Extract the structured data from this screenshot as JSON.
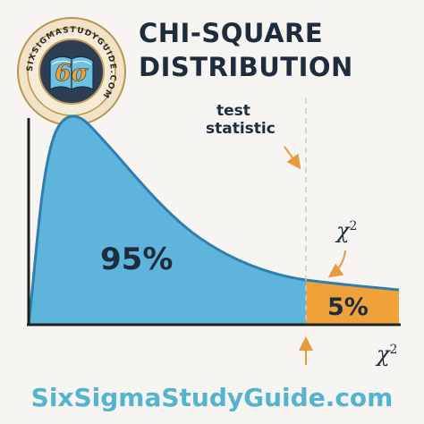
{
  "title": {
    "line1": "CHI-SQUARE",
    "line2": "DISTRIBUTION"
  },
  "logo": {
    "ring_text": "SIXSIGMASTUDYGUIDE.COM",
    "monogram": "6σ",
    "icon": "open-book-icon"
  },
  "annotations": {
    "test_statistic_line1": "test",
    "test_statistic_line2": "statistic",
    "chi_symbol": "χ",
    "chi_exponent": "2"
  },
  "regions": {
    "acceptance_label": "95%",
    "rejection_label": "5%"
  },
  "axis": {
    "x_label_symbol": "χ",
    "x_label_exponent": "2"
  },
  "footer": {
    "site": "SixSigmaStudyGuide.com"
  },
  "colors": {
    "curve_fill": "#5fb4dc",
    "curve_stroke": "#2f7fae",
    "tail_fill": "#f0a23a",
    "arrow": "#e89a3c",
    "text_dark": "#1f2c3e",
    "footer_text": "#55b3d2",
    "axis": "#222222"
  }
}
